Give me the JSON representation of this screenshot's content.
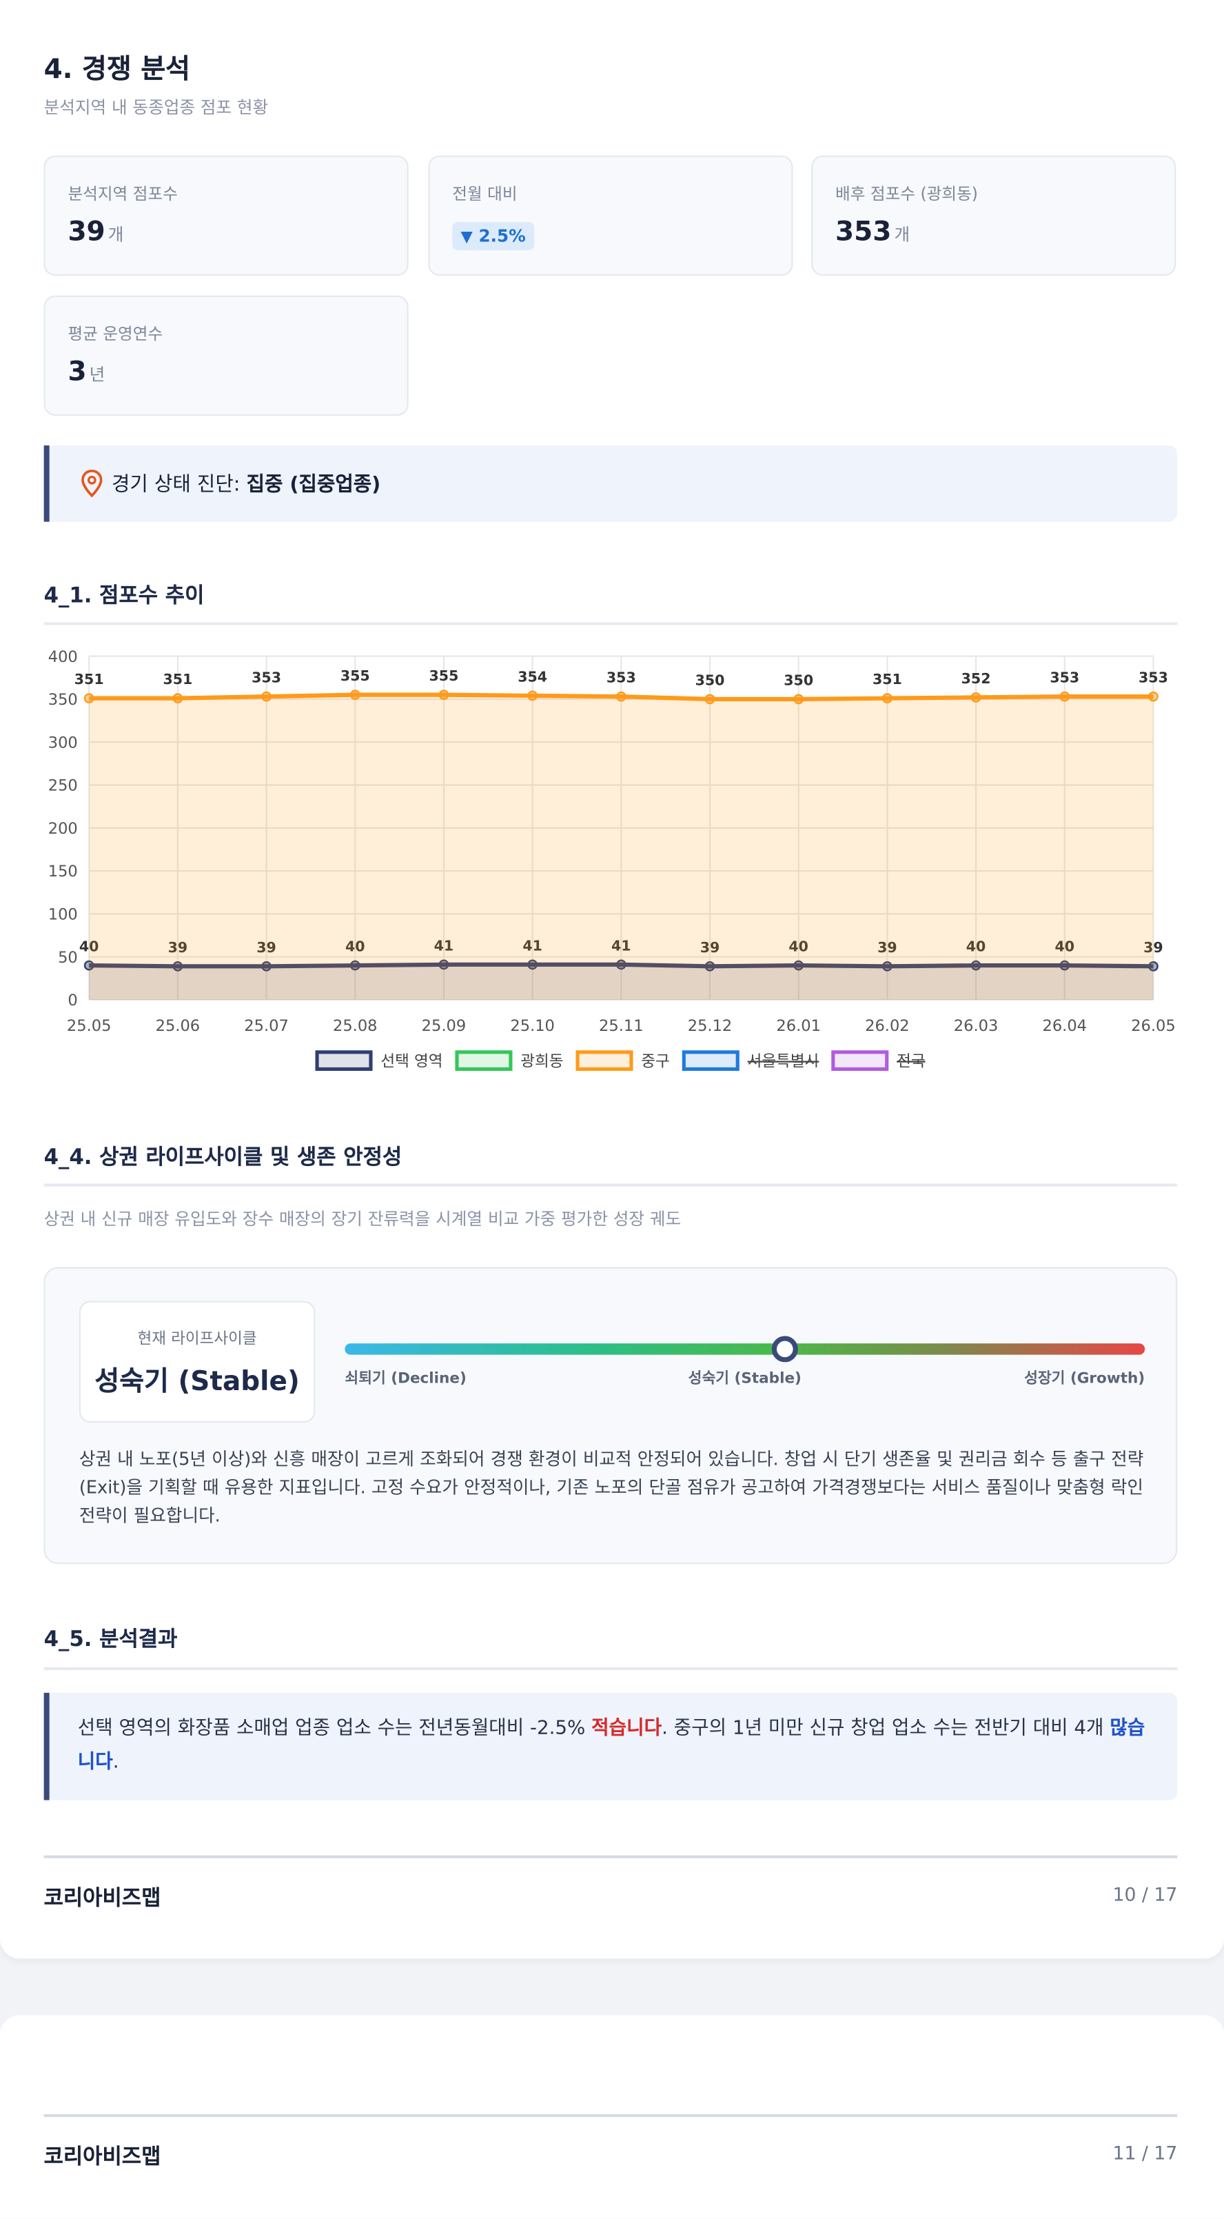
{
  "section": {
    "title": "4. 경쟁 분석",
    "subtitle": "분석지역 내 동종업종 점포 현황"
  },
  "stats": [
    {
      "label": "분석지역 점포수",
      "value": "39",
      "unit": "개"
    },
    {
      "label": "전월 대비",
      "value": "2.5%"
    },
    {
      "label": "배후 점포수 (광희동)",
      "value": "353",
      "unit": "개"
    },
    {
      "label": "평균 운영연수",
      "value": "3",
      "unit": "년"
    }
  ],
  "diagnosis": {
    "label": "경기 상태 진단:",
    "value": "집중 (집중업종)"
  },
  "trend": {
    "title": "4_1. 점포수 추이",
    "chart": {
      "type": "line",
      "x": [
        "25.05",
        "25.06",
        "25.07",
        "25.08",
        "25.09",
        "25.10",
        "25.11",
        "25.12",
        "26.01",
        "26.02",
        "26.03",
        "26.04",
        "26.05"
      ],
      "ylim": [
        0,
        400
      ],
      "yticks": [
        0,
        50,
        100,
        150,
        200,
        250,
        300,
        350,
        400
      ],
      "grid": true,
      "series": [
        {
          "name": "선택 영역",
          "color": "#2f3f73",
          "values": [
            40,
            39,
            39,
            40,
            41,
            41,
            41,
            39,
            40,
            39,
            40,
            40,
            39
          ]
        },
        {
          "name": "광희동",
          "color": "#34c759"
        },
        {
          "name": "중구",
          "color": "#ff9a1a",
          "values": [
            351,
            351,
            353,
            355,
            355,
            354,
            353,
            350,
            350,
            351,
            352,
            353,
            353
          ]
        },
        {
          "name": "서울특별시",
          "color": "#1f7ae0",
          "hidden": true
        },
        {
          "name": "전국",
          "color": "#b05ce0",
          "hidden": true
        }
      ]
    }
  },
  "lifecycle": {
    "title": "4_4. 상권 라이프사이클 및 생존 안정성",
    "subtitle": "상권 내 신규 매장 유입도와 장수 매장의 장기 잔류력을 시계열 비교 가중 평가한 성장 궤도",
    "current_label": "현재 라이프사이클",
    "current": "성숙기 (Stable)",
    "scale": [
      "쇠퇴기 (Decline)",
      "성숙기 (Stable)",
      "성장기 (Growth)"
    ],
    "position": 55,
    "description": "상권 내 노포(5년 이상)와 신흥 매장이 고르게 조화되어 경쟁 환경이 비교적 안정되어 있습니다. 창업 시 단기 생존율 및 권리금 회수 등 출구 전략(Exit)을 기획할 때 유용한 지표입니다. 고정 수요가 안정적이나, 기존 노포의 단골 점유가 공고하여 가격경쟁보다는 서비스 품질이나 맞춤형 락인 전략이 필요합니다."
  },
  "result": {
    "title": "4_5. 분석결과",
    "parts": [
      "선택 영역의 화장품 소매업 업종 업소 수는 전년동월대비 -2.5% ",
      "적습니다",
      ". 중구의 1년 미만 신규 창업 업소 수는 전반기 대비 4개 ",
      "많습니다",
      "."
    ]
  },
  "footers": [
    {
      "brand": "코리아비즈맵",
      "page": "10 / 17"
    },
    {
      "brand": "코리아비즈맵",
      "page": "11 / 17"
    }
  ]
}
